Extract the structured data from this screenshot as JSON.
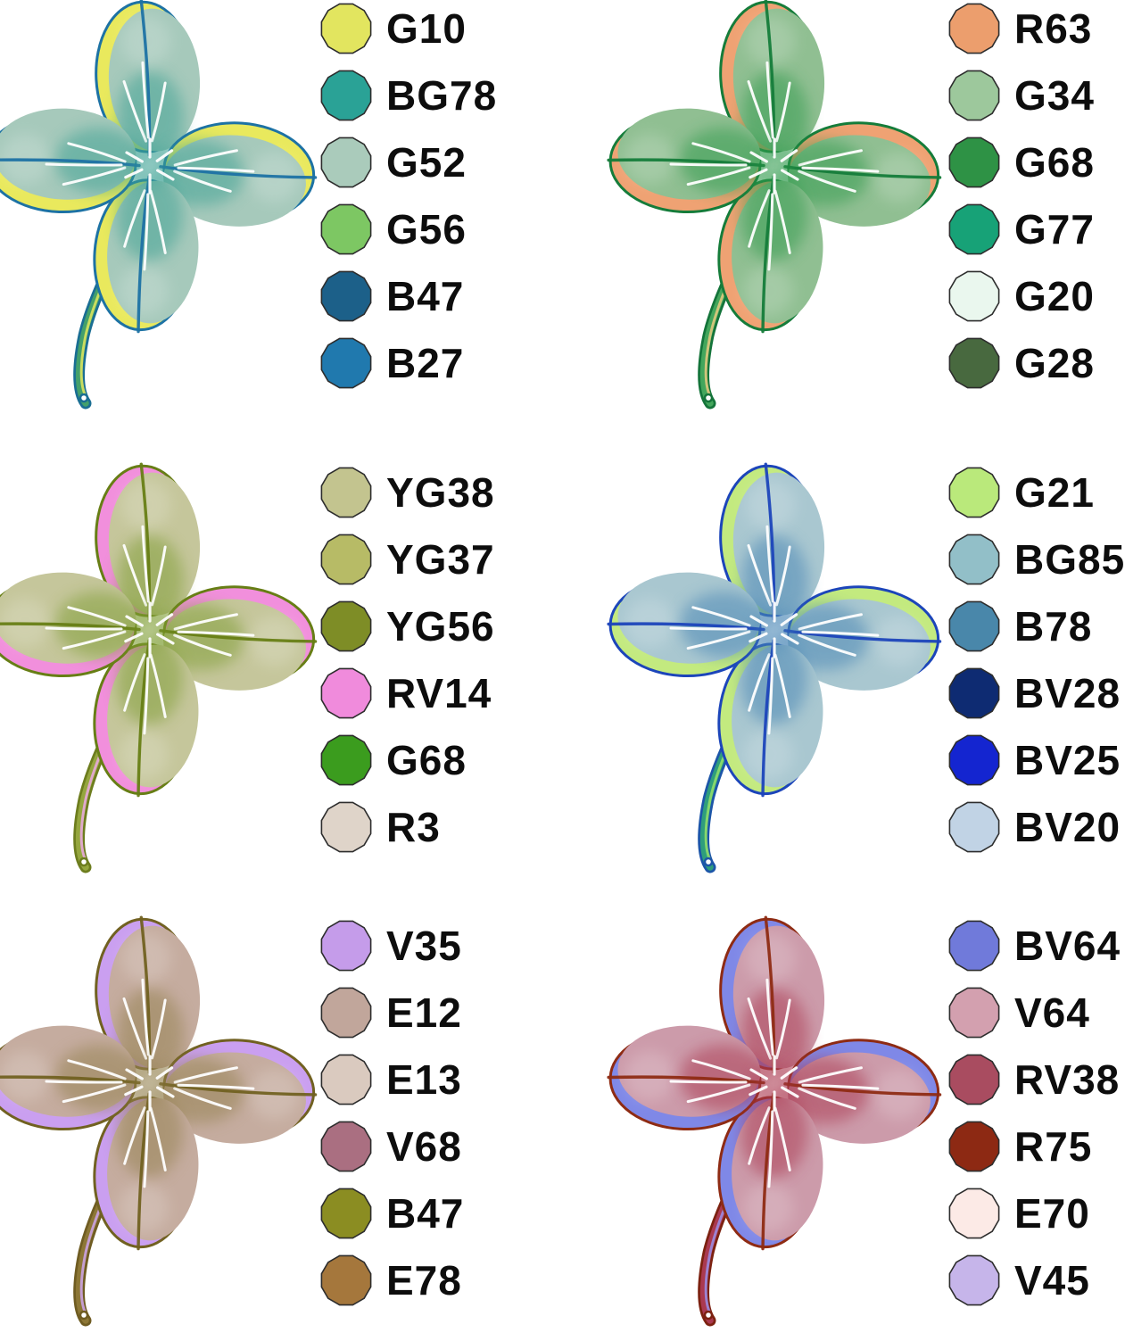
{
  "page": {
    "background": "#ffffff",
    "swatch_outline": "#2d2d2d",
    "label_color": "#0d0d0d"
  },
  "panels": [
    {
      "id": "top-left",
      "legend": [
        {
          "code": "G10",
          "color": "#e2e55f"
        },
        {
          "code": "BG78",
          "color": "#2aa296"
        },
        {
          "code": "G52",
          "color": "#aacbbb"
        },
        {
          "code": "G56",
          "color": "#7dc763"
        },
        {
          "code": "B47",
          "color": "#1c6089"
        },
        {
          "code": "B27",
          "color": "#2079ae"
        }
      ],
      "art": {
        "body": "#a6c9bb",
        "wash": "#3aa093",
        "outline": "#1d72a4",
        "accent": "#e9e95d",
        "stem_outer": "#1a6e93",
        "stem_inner": "#44a06b",
        "stem_core": "#d9e35f",
        "vein": "#ffffff"
      }
    },
    {
      "id": "top-right",
      "legend": [
        {
          "code": "R63",
          "color": "#ec9e6d"
        },
        {
          "code": "G34",
          "color": "#9dc89c"
        },
        {
          "code": "G68",
          "color": "#2e9245"
        },
        {
          "code": "G77",
          "color": "#17a277"
        },
        {
          "code": "G20",
          "color": "#eaf7ee"
        },
        {
          "code": "G28",
          "color": "#48693f"
        }
      ],
      "art": {
        "body": "#90bf92",
        "wash": "#2f9a4b",
        "outline": "#157c3a",
        "accent": "#efa273",
        "stem_outer": "#14743a",
        "stem_inner": "#43a65c",
        "stem_core": "#e0c97e",
        "vein": "#ffffff"
      }
    },
    {
      "id": "middle-left",
      "legend": [
        {
          "code": "YG38",
          "color": "#c3c48f"
        },
        {
          "code": "YG37",
          "color": "#b7bb66"
        },
        {
          "code": "YG56",
          "color": "#7e8d26"
        },
        {
          "code": "RV14",
          "color": "#f08bdc"
        },
        {
          "code": "G68",
          "color": "#3b9c1e"
        },
        {
          "code": "R3",
          "color": "#dfd4c9"
        }
      ],
      "art": {
        "body": "#c5c69b",
        "wash": "#7d9c31",
        "outline": "#677e15",
        "accent": "#f18fdc",
        "stem_outer": "#6d7d1e",
        "stem_inner": "#95a63e",
        "stem_core": "#e8aadc",
        "vein": "#ffffff"
      }
    },
    {
      "id": "middle-right",
      "legend": [
        {
          "code": "G21",
          "color": "#bae97b"
        },
        {
          "code": "BG85",
          "color": "#92bfc8"
        },
        {
          "code": "B78",
          "color": "#4987aa"
        },
        {
          "code": "BV28",
          "color": "#0e2b72"
        },
        {
          "code": "BV25",
          "color": "#1425d0"
        },
        {
          "code": "BV20",
          "color": "#c1d3e5"
        }
      ],
      "art": {
        "body": "#a9c7d0",
        "wash": "#4583b4",
        "outline": "#1c45ba",
        "accent": "#c3ea7f",
        "stem_outer": "#1c55a8",
        "stem_inner": "#2f9e7c",
        "stem_core": "#90dd6b",
        "vein": "#ffffff"
      }
    },
    {
      "id": "bottom-left",
      "legend": [
        {
          "code": "V35",
          "color": "#c59cea"
        },
        {
          "code": "E12",
          "color": "#c1a69b"
        },
        {
          "code": "E13",
          "color": "#dacabf"
        },
        {
          "code": "V68",
          "color": "#aa6f81"
        },
        {
          "code": "B47",
          "color": "#8b8d22"
        },
        {
          "code": "E78",
          "color": "#a5773c"
        }
      ],
      "art": {
        "body": "#c5ac9f",
        "wash": "#93804d",
        "outline": "#716121",
        "accent": "#ca9ff0",
        "stem_outer": "#6f5c22",
        "stem_inner": "#8d7736",
        "stem_core": "#cba2e2",
        "vein": "#ffffff"
      }
    },
    {
      "id": "bottom-right",
      "legend": [
        {
          "code": "BV64",
          "color": "#707ada"
        },
        {
          "code": "V64",
          "color": "#d3a0af"
        },
        {
          "code": "RV38",
          "color": "#a94c60"
        },
        {
          "code": "R75",
          "color": "#8d2913"
        },
        {
          "code": "E70",
          "color": "#fceae6"
        },
        {
          "code": "V45",
          "color": "#c6b5ea"
        }
      ],
      "art": {
        "body": "#cc9baa",
        "wash": "#aa3950",
        "outline": "#8e2b13",
        "accent": "#7f88e7",
        "stem_outer": "#7c2110",
        "stem_inner": "#aa3950",
        "stem_core": "#9b8bdf",
        "vein": "#ffffff"
      }
    }
  ]
}
